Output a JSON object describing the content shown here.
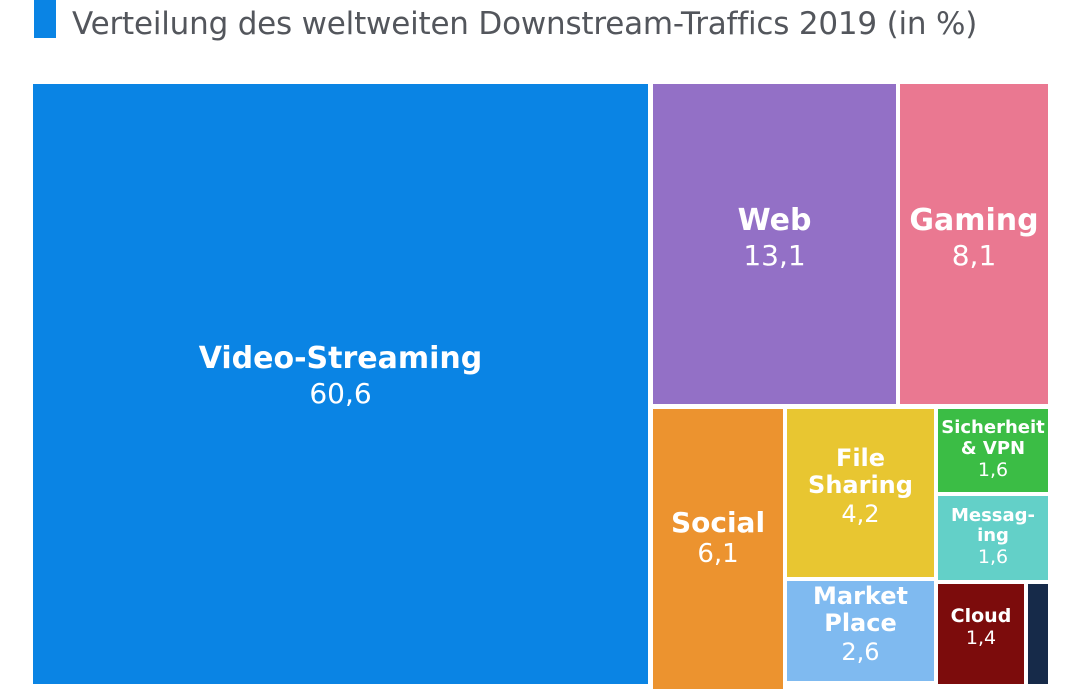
{
  "chart_data": {
    "type": "treemap",
    "title": "Verteilung des weltweiten Downstream-Traffics 2019 (in %)",
    "segments": [
      {
        "name": "Video-Streaming",
        "value_label": "60,6",
        "value": 60.6,
        "color": "#0a84e4"
      },
      {
        "name": "Web",
        "value_label": "13,1",
        "value": 13.1,
        "color": "#9370c6"
      },
      {
        "name": "Gaming",
        "value_label": "8,1",
        "value": 8.1,
        "color": "#ea7891"
      },
      {
        "name": "Social",
        "value_label": "6,1",
        "value": 6.1,
        "color": "#ec932f"
      },
      {
        "name": "File Sharing",
        "value_label": "4,2",
        "value": 4.2,
        "color": "#e8c631"
      },
      {
        "name": "Market Place",
        "value_label": "2,6",
        "value": 2.6,
        "color": "#7fbaf0"
      },
      {
        "name": "Sicherheit & VPN",
        "value_label": "1,6",
        "value": 1.6,
        "color": "#3bbd45"
      },
      {
        "name": "Messag-ing",
        "value_label": "1,6",
        "value": 1.6,
        "color": "#63d0c8"
      },
      {
        "name": "Cloud",
        "value_label": "1,4",
        "value": 1.4,
        "color": "#7c0c0c"
      },
      {
        "name": "",
        "value_label": "",
        "value": null,
        "color": "#162a49"
      }
    ]
  }
}
